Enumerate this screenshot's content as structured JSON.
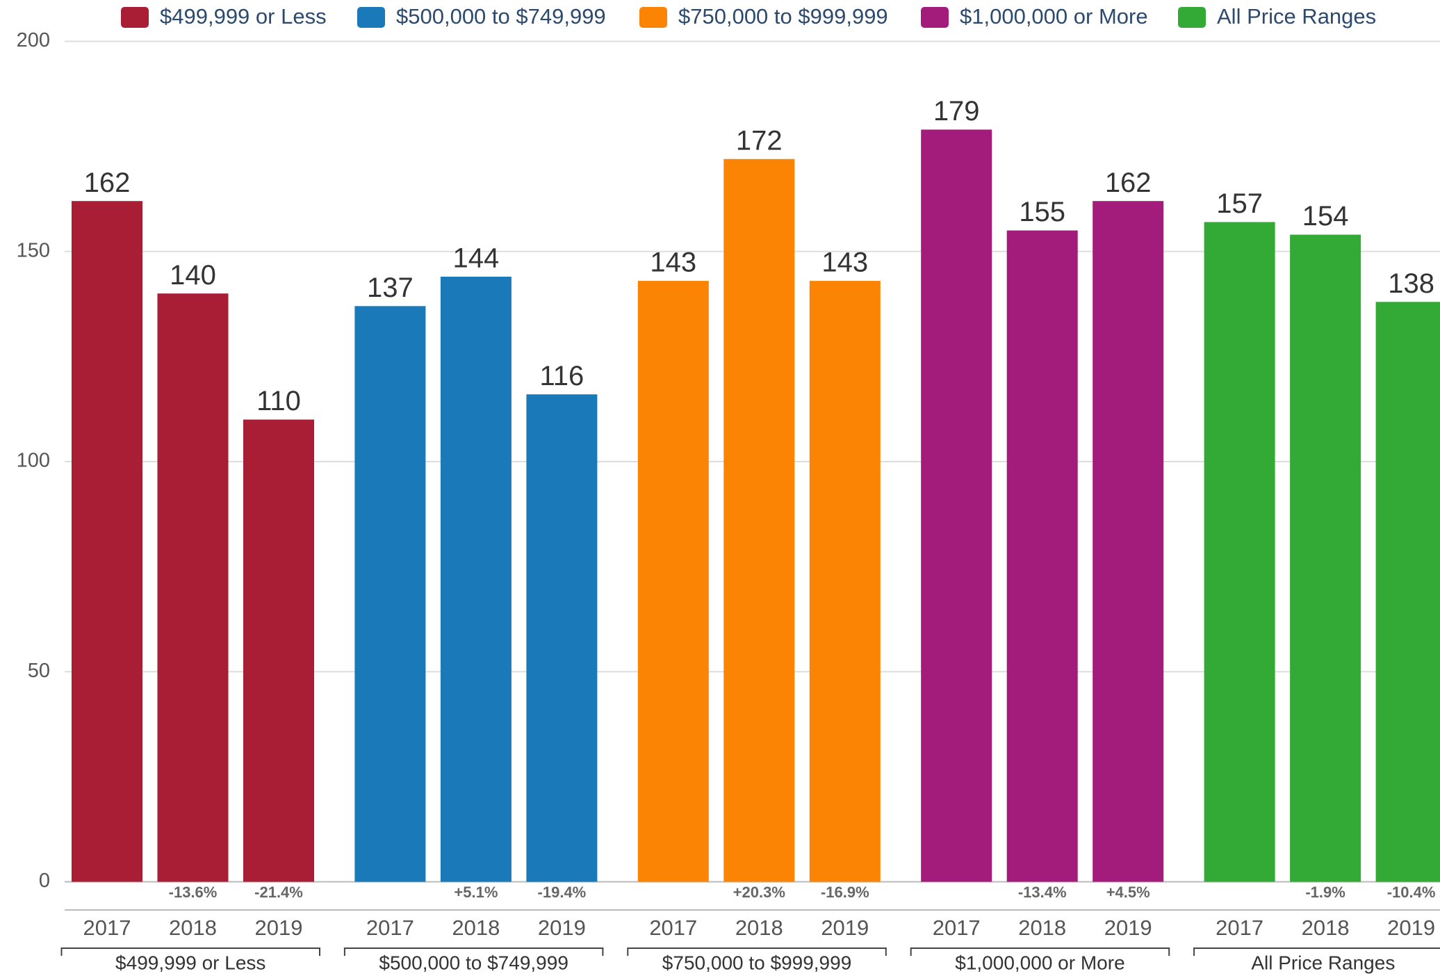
{
  "chart_data": {
    "type": "bar",
    "categories": [
      "2017",
      "2018",
      "2019"
    ],
    "series": [
      {
        "name": "$499,999 or Less",
        "color": "#a91d35",
        "values": [
          162,
          140,
          110
        ],
        "change_labels": [
          null,
          "-13.6%",
          "-21.4%"
        ]
      },
      {
        "name": "$500,000 to $749,999",
        "color": "#1a7ab9",
        "values": [
          137,
          144,
          116
        ],
        "change_labels": [
          null,
          "+5.1%",
          "-19.4%"
        ]
      },
      {
        "name": "$750,000 to $999,999",
        "color": "#fb8405",
        "values": [
          143,
          172,
          143
        ],
        "change_labels": [
          null,
          "+20.3%",
          "-16.9%"
        ]
      },
      {
        "name": "$1,000,000 or More",
        "color": "#a31b7b",
        "values": [
          179,
          155,
          162
        ],
        "change_labels": [
          null,
          "-13.4%",
          "+4.5%"
        ]
      },
      {
        "name": "All Price Ranges",
        "color": "#33aa35",
        "values": [
          157,
          154,
          138
        ],
        "change_labels": [
          null,
          "-1.9%",
          "-10.4%"
        ]
      }
    ],
    "ylim": [
      0,
      200
    ],
    "yticks": [
      0,
      50,
      100,
      150,
      200
    ],
    "grid": true,
    "legend": "top"
  }
}
